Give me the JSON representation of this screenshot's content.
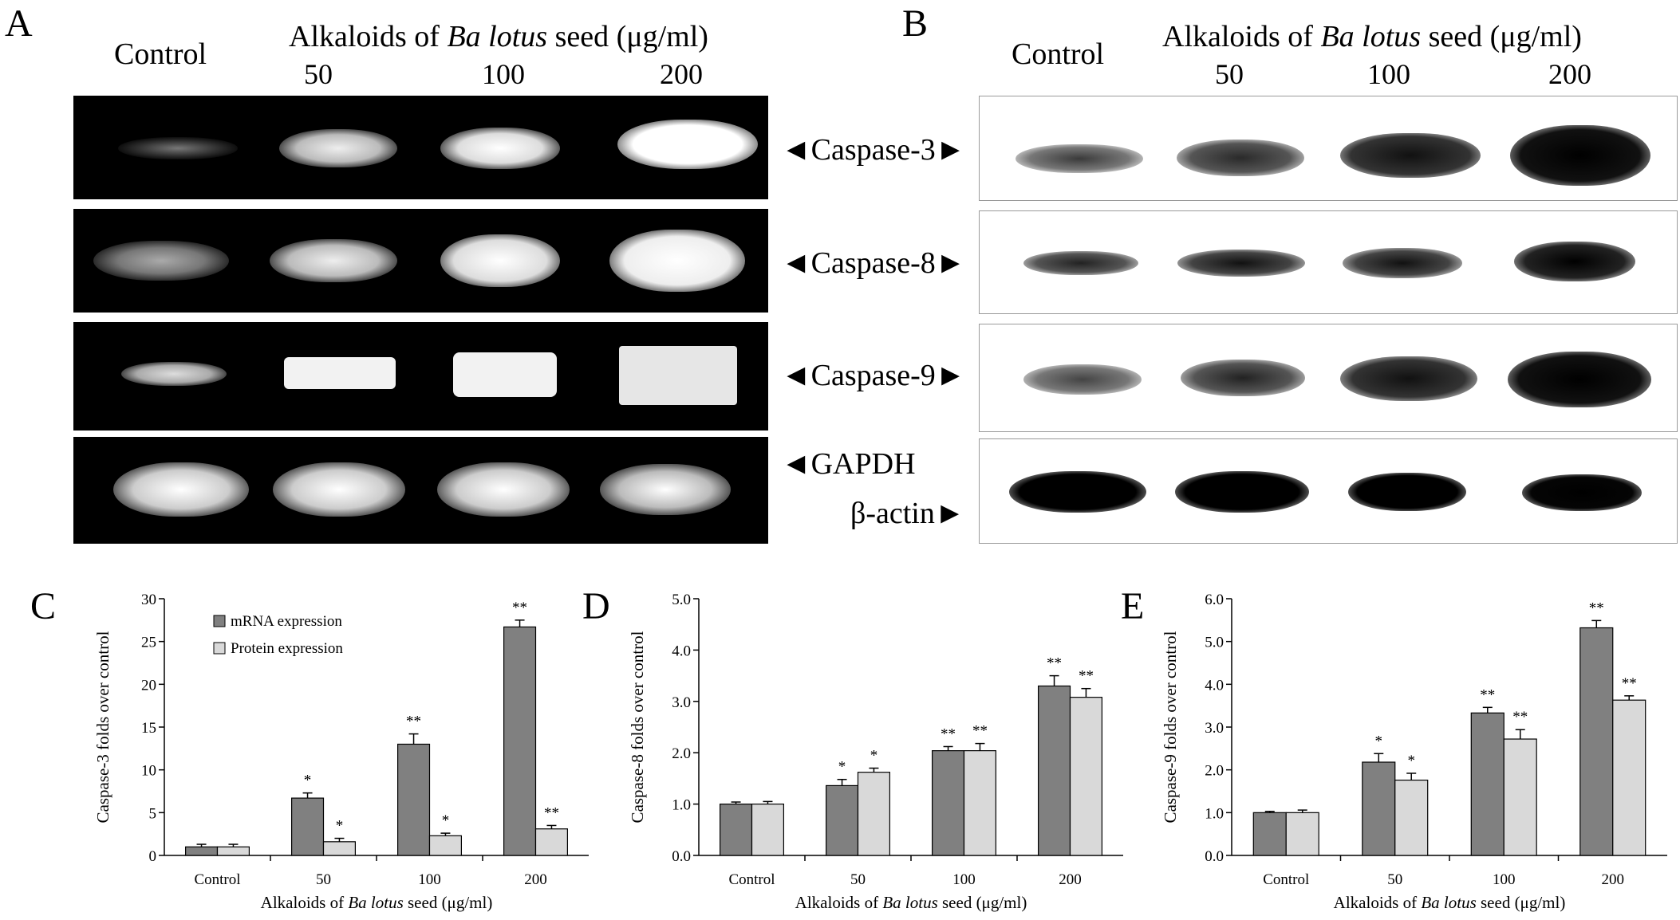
{
  "panels": {
    "A": {
      "letter": "A",
      "control": "Control",
      "header_pre": "Alkaloids of ",
      "header_italic": "Ba lotus",
      "header_post": " seed (μg/ml)",
      "doses": [
        "50",
        "100",
        "200"
      ]
    },
    "B": {
      "letter": "B",
      "control": "Control",
      "header_pre": "Alkaloids of ",
      "header_italic": "Ba lotus",
      "header_post": " seed (μg/ml)",
      "doses": [
        "50",
        "100",
        "200"
      ]
    }
  },
  "gel_labels": {
    "caspase3": "◄Caspase-3►",
    "caspase8": "◄Caspase-8►",
    "caspase9": "◄Caspase-9►",
    "gapdh": "◄GAPDH",
    "bactin": "β-actin►"
  },
  "legend": {
    "mrna": "mRNA expression",
    "protein": "Protein expression"
  },
  "colors": {
    "mrna": "#808080",
    "protein": "#d9d9d9"
  },
  "chart_data": [
    {
      "type": "bar",
      "panel": "C",
      "categories": [
        "Control",
        "50",
        "100",
        "200"
      ],
      "ylabel": "Caspase-3 folds over control",
      "xlabel_pre": "Alkaloids of ",
      "xlabel_italic": "Ba lotus",
      "xlabel_post": " seed (μg/ml)",
      "ylim": [
        0,
        30
      ],
      "yticks": [
        "0",
        "5",
        "10",
        "15",
        "20",
        "25",
        "30"
      ],
      "ystep": 5,
      "series": [
        {
          "name": "mRNA expression",
          "values": [
            1.0,
            6.7,
            13.0,
            26.7
          ],
          "err": [
            0.3,
            0.6,
            1.2,
            0.8
          ],
          "sig": [
            "",
            "*",
            "**",
            "**"
          ]
        },
        {
          "name": "Protein expression",
          "values": [
            1.0,
            1.6,
            2.3,
            3.1
          ],
          "err": [
            0.3,
            0.4,
            0.3,
            0.4
          ],
          "sig": [
            "",
            "*",
            "*",
            "**"
          ]
        }
      ]
    },
    {
      "type": "bar",
      "panel": "D",
      "categories": [
        "Control",
        "50",
        "100",
        "200"
      ],
      "ylabel": "Caspase-8 folds over control",
      "xlabel_pre": "Alkaloids of ",
      "xlabel_italic": "Ba lotus",
      "xlabel_post": " seed (μg/ml)",
      "ylim": [
        0,
        5
      ],
      "yticks": [
        "0.0",
        "1.0",
        "2.0",
        "3.0",
        "4.0",
        "5.0"
      ],
      "ystep": 1,
      "series": [
        {
          "name": "mRNA expression",
          "values": [
            1.0,
            1.36,
            2.04,
            3.3
          ],
          "err": [
            0.04,
            0.12,
            0.08,
            0.2
          ],
          "sig": [
            "",
            "*",
            "**",
            "**"
          ]
        },
        {
          "name": "Protein expression",
          "values": [
            1.0,
            1.62,
            2.04,
            3.08
          ],
          "err": [
            0.05,
            0.08,
            0.14,
            0.17
          ],
          "sig": [
            "",
            "*",
            "**",
            "**"
          ]
        }
      ]
    },
    {
      "type": "bar",
      "panel": "E",
      "categories": [
        "Control",
        "50",
        "100",
        "200"
      ],
      "ylabel": "Caspase-9 folds over control",
      "xlabel_pre": "Alkaloids of ",
      "xlabel_italic": "Ba lotus",
      "xlabel_post": " seed (μg/ml)",
      "ylim": [
        0,
        6
      ],
      "yticks": [
        "0.0",
        "1.0",
        "2.0",
        "3.0",
        "4.0",
        "5.0",
        "6.0"
      ],
      "ystep": 1,
      "series": [
        {
          "name": "mRNA expression",
          "values": [
            1.0,
            2.18,
            3.33,
            5.32
          ],
          "err": [
            0.03,
            0.2,
            0.13,
            0.17
          ],
          "sig": [
            "",
            "*",
            "**",
            "**"
          ]
        },
        {
          "name": "Protein expression",
          "values": [
            1.0,
            1.76,
            2.72,
            3.63
          ],
          "err": [
            0.06,
            0.16,
            0.22,
            0.1
          ],
          "sig": [
            "",
            "*",
            "**",
            "**"
          ]
        }
      ]
    }
  ]
}
